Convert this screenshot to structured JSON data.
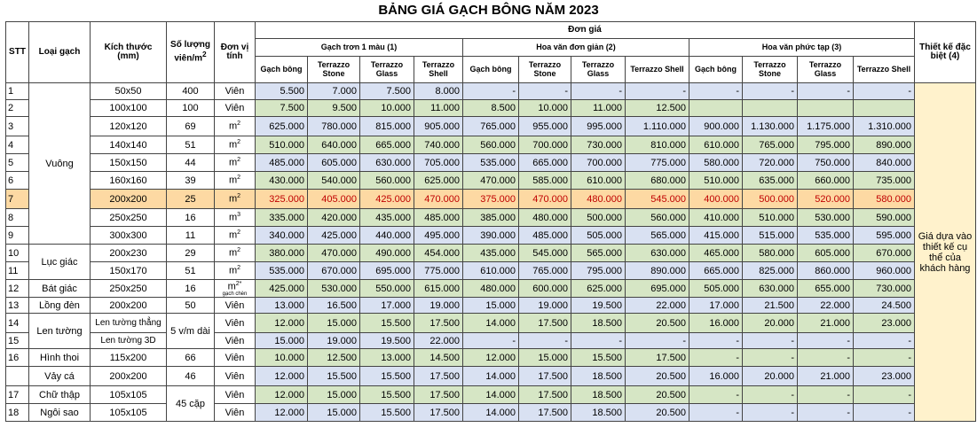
{
  "title": "BẢNG GIÁ GẠCH BÔNG NĂM 2023",
  "headers": {
    "stt": "STT",
    "loai": "Loại gạch",
    "size": "Kích thước (mm)",
    "qty": "Số lượng viên/m",
    "qty_sup": "2",
    "unit": "Đơn vị tính",
    "price": "Đơn giá",
    "group1": "Gạch trơn 1 màu (1)",
    "group2": "Hoa văn đơn giản (2)",
    "group3": "Hoa văn phức tạp (3)",
    "special": "Thiết kế đặc biệt (4)",
    "sub": [
      "Gạch bông",
      "Terrazzo Stone",
      "Terrazzo Glass",
      "Terrazzo Shell"
    ]
  },
  "special_note": "Giá dựa vào thiết kế cụ thể của khách hàng",
  "rows": [
    {
      "stt": "1",
      "type": "",
      "size": "50x50",
      "qty": "400",
      "unit": "Viên",
      "p": [
        "5.500",
        "7.000",
        "7.500",
        "8.000",
        "-",
        "-",
        "-",
        "-",
        "-",
        "-",
        "-",
        "-"
      ]
    },
    {
      "stt": "2",
      "type": "",
      "size": "100x100",
      "qty": "100",
      "unit": "Viên",
      "p": [
        "7.500",
        "9.500",
        "10.000",
        "11.000",
        "8.500",
        "10.000",
        "11.000",
        "12.500",
        "",
        "",
        "",
        ""
      ]
    },
    {
      "stt": "3",
      "type": "",
      "size": "120x120",
      "qty": "69",
      "unit": "m2",
      "p": [
        "625.000",
        "780.000",
        "815.000",
        "905.000",
        "765.000",
        "955.000",
        "995.000",
        "1.110.000",
        "900.000",
        "1.130.000",
        "1.175.000",
        "1.310.000"
      ]
    },
    {
      "stt": "4",
      "type": "",
      "size": "140x140",
      "qty": "51",
      "unit": "m2",
      "p": [
        "510.000",
        "640.000",
        "665.000",
        "740.000",
        "560.000",
        "700.000",
        "730.000",
        "810.000",
        "610.000",
        "765.000",
        "795.000",
        "890.000"
      ]
    },
    {
      "stt": "5",
      "type": "Vuông",
      "size": "150x150",
      "qty": "44",
      "unit": "m2",
      "p": [
        "485.000",
        "605.000",
        "630.000",
        "705.000",
        "535.000",
        "665.000",
        "700.000",
        "775.000",
        "580.000",
        "720.000",
        "750.000",
        "840.000"
      ]
    },
    {
      "stt": "6",
      "type": "",
      "size": "160x160",
      "qty": "39",
      "unit": "m2",
      "p": [
        "430.000",
        "540.000",
        "560.000",
        "625.000",
        "470.000",
        "585.000",
        "610.000",
        "680.000",
        "510.000",
        "635.000",
        "660.000",
        "735.000"
      ]
    },
    {
      "stt": "7",
      "type": "",
      "size": "200x200",
      "qty": "25",
      "unit": "m2",
      "p": [
        "325.000",
        "405.000",
        "425.000",
        "470.000",
        "375.000",
        "470.000",
        "480.000",
        "545.000",
        "400.000",
        "500.000",
        "520.000",
        "580.000"
      ]
    },
    {
      "stt": "8",
      "type": "",
      "size": "250x250",
      "qty": "16",
      "unit": "m3",
      "p": [
        "335.000",
        "420.000",
        "435.000",
        "485.000",
        "385.000",
        "480.000",
        "500.000",
        "560.000",
        "410.000",
        "510.000",
        "530.000",
        "590.000"
      ]
    },
    {
      "stt": "9",
      "type": "",
      "size": "300x300",
      "qty": "11",
      "unit": "m2",
      "p": [
        "340.000",
        "425.000",
        "440.000",
        "495.000",
        "390.000",
        "485.000",
        "505.000",
        "565.000",
        "415.000",
        "515.000",
        "535.000",
        "595.000"
      ]
    },
    {
      "stt": "10",
      "type": "Lục giác",
      "size": "200x230",
      "qty": "29",
      "unit": "m2",
      "p": [
        "380.000",
        "470.000",
        "490.000",
        "454.000",
        "435.000",
        "545.000",
        "565.000",
        "630.000",
        "465.000",
        "580.000",
        "605.000",
        "670.000"
      ]
    },
    {
      "stt": "11",
      "type": "",
      "size": "150x170",
      "qty": "51",
      "unit": "m2",
      "p": [
        "535.000",
        "670.000",
        "695.000",
        "775.000",
        "610.000",
        "765.000",
        "795.000",
        "890.000",
        "665.000",
        "825.000",
        "860.000",
        "960.000"
      ]
    },
    {
      "stt": "12",
      "type": "Bát giác",
      "size": "250x250",
      "qty": "16",
      "unit": "m2*",
      "unit_sub": "gạch chèn",
      "p": [
        "425.000",
        "530.000",
        "550.000",
        "615.000",
        "480.000",
        "600.000",
        "625.000",
        "695.000",
        "505.000",
        "630.000",
        "655.000",
        "730.000"
      ]
    },
    {
      "stt": "13",
      "type": "Lồng đèn",
      "size": "200x200",
      "qty": "50",
      "unit": "Viên",
      "p": [
        "13.000",
        "16.500",
        "17.000",
        "19.000",
        "15.000",
        "19.000",
        "19.500",
        "22.000",
        "17.000",
        "21.500",
        "22.000",
        "24.500"
      ]
    },
    {
      "stt": "14",
      "type": "Len tường",
      "size": "Len tường thẳng",
      "qty": "5 v/m dài",
      "unit": "Viên",
      "p": [
        "12.000",
        "15.000",
        "15.500",
        "17.500",
        "14.000",
        "17.500",
        "18.500",
        "20.500",
        "16.000",
        "20.000",
        "21.000",
        "23.000"
      ]
    },
    {
      "stt": "15",
      "type": "",
      "size": "Len tường 3D",
      "qty": "",
      "unit": "Viên",
      "p": [
        "15.000",
        "19.000",
        "19.500",
        "22.000",
        "-",
        "-",
        "-",
        "-",
        "-",
        "-",
        "-",
        "-"
      ]
    },
    {
      "stt": "16",
      "type": "Hình thoi",
      "size": "115x200",
      "qty": "66",
      "unit": "Viên",
      "p": [
        "10.000",
        "12.500",
        "13.000",
        "14.500",
        "12.000",
        "15.000",
        "15.500",
        "17.500",
        "-",
        "-",
        "-",
        "-"
      ]
    },
    {
      "stt": "",
      "type": "Vảy cá",
      "size": "200x200",
      "qty": "46",
      "unit": "Viên",
      "p": [
        "12.000",
        "15.500",
        "15.500",
        "17.500",
        "14.000",
        "17.500",
        "18.500",
        "20.500",
        "16.000",
        "20.000",
        "21.000",
        "23.000"
      ]
    },
    {
      "stt": "17",
      "type": "Chữ thập",
      "size": "105x105",
      "qty": "45 cặp",
      "unit": "Viên",
      "p": [
        "12.000",
        "15.000",
        "15.500",
        "17.500",
        "14.000",
        "17.500",
        "18.500",
        "20.500",
        "-",
        "-",
        "-",
        "-"
      ]
    },
    {
      "stt": "18",
      "type": "Ngôi sao",
      "size": "105x105",
      "qty": "",
      "unit": "Viên",
      "p": [
        "12.000",
        "15.000",
        "15.500",
        "17.500",
        "14.000",
        "17.500",
        "18.500",
        "20.500",
        "-",
        "-",
        "-",
        "-"
      ]
    }
  ]
}
